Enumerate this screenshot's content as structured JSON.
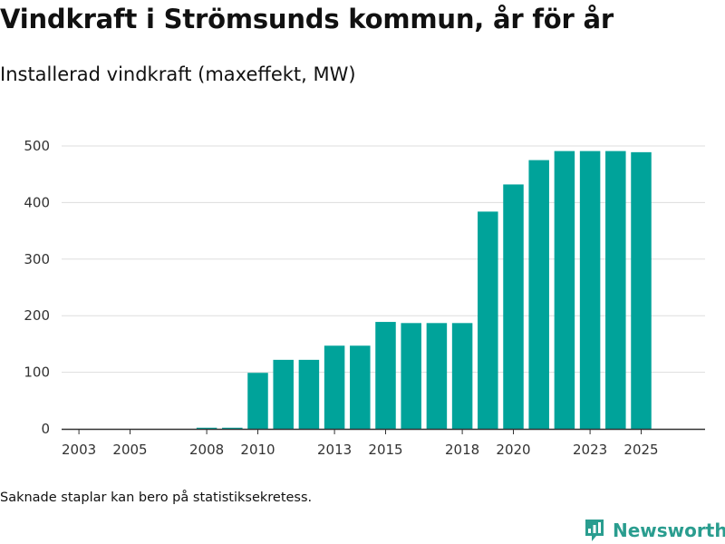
{
  "title": "Vindkraft i Strömsunds kommun, år för år",
  "subtitle": "Installerad vindkraft (maxeffekt, MW)",
  "footnote": "Saknade staplar kan bero på statistiksekretess.",
  "brand": {
    "name": "Newsworthy",
    "color": "#2a9d8f"
  },
  "colors": {
    "bar": "#00a39a",
    "grid": "#dddddd",
    "axis": "#333333"
  },
  "chart_data": {
    "type": "bar",
    "x": [
      2003,
      2004,
      2005,
      2006,
      2007,
      2008,
      2009,
      2010,
      2011,
      2012,
      2013,
      2014,
      2015,
      2016,
      2017,
      2018,
      2019,
      2020,
      2021,
      2022,
      2023,
      2024,
      2025
    ],
    "values": [
      0,
      0,
      0,
      0,
      0,
      2,
      2,
      99,
      122,
      122,
      147,
      147,
      189,
      187,
      187,
      187,
      384,
      432,
      475,
      491,
      491,
      491,
      489
    ],
    "x_tick_labels": [
      "2003",
      "2005",
      "2008",
      "2010",
      "2013",
      "2015",
      "2018",
      "2020",
      "2023",
      "2025"
    ],
    "y_ticks": [
      0,
      100,
      200,
      300,
      400,
      500
    ],
    "ylim": [
      0,
      510
    ],
    "grid": true
  }
}
